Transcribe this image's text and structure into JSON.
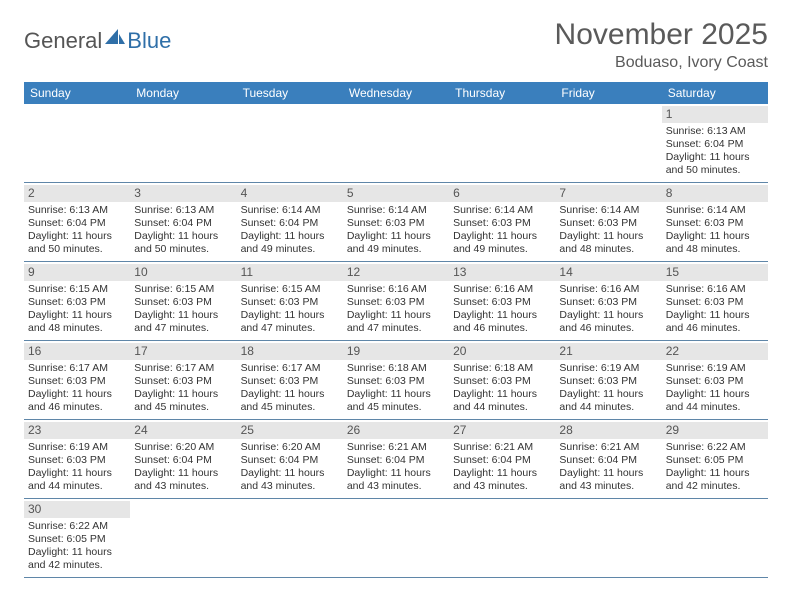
{
  "header": {
    "logo_text_a": "General",
    "logo_text_b": "Blue",
    "month_title": "November 2025",
    "location": "Boduaso, Ivory Coast",
    "title_color": "#5a5a5a",
    "logo_blue": "#2f6fa8",
    "logo_gray": "#555555"
  },
  "colors": {
    "header_bg": "#3a7fbd",
    "header_fg": "#ffffff",
    "daybar_bg": "#e6e6e6",
    "week_border": "#5f86a8",
    "text": "#333333"
  },
  "days_of_week": [
    "Sunday",
    "Monday",
    "Tuesday",
    "Wednesday",
    "Thursday",
    "Friday",
    "Saturday"
  ],
  "weeks": [
    [
      null,
      null,
      null,
      null,
      null,
      null,
      {
        "n": "1",
        "sunrise": "Sunrise: 6:13 AM",
        "sunset": "Sunset: 6:04 PM",
        "daylight": "Daylight: 11 hours and 50 minutes."
      }
    ],
    [
      {
        "n": "2",
        "sunrise": "Sunrise: 6:13 AM",
        "sunset": "Sunset: 6:04 PM",
        "daylight": "Daylight: 11 hours and 50 minutes."
      },
      {
        "n": "3",
        "sunrise": "Sunrise: 6:13 AM",
        "sunset": "Sunset: 6:04 PM",
        "daylight": "Daylight: 11 hours and 50 minutes."
      },
      {
        "n": "4",
        "sunrise": "Sunrise: 6:14 AM",
        "sunset": "Sunset: 6:04 PM",
        "daylight": "Daylight: 11 hours and 49 minutes."
      },
      {
        "n": "5",
        "sunrise": "Sunrise: 6:14 AM",
        "sunset": "Sunset: 6:03 PM",
        "daylight": "Daylight: 11 hours and 49 minutes."
      },
      {
        "n": "6",
        "sunrise": "Sunrise: 6:14 AM",
        "sunset": "Sunset: 6:03 PM",
        "daylight": "Daylight: 11 hours and 49 minutes."
      },
      {
        "n": "7",
        "sunrise": "Sunrise: 6:14 AM",
        "sunset": "Sunset: 6:03 PM",
        "daylight": "Daylight: 11 hours and 48 minutes."
      },
      {
        "n": "8",
        "sunrise": "Sunrise: 6:14 AM",
        "sunset": "Sunset: 6:03 PM",
        "daylight": "Daylight: 11 hours and 48 minutes."
      }
    ],
    [
      {
        "n": "9",
        "sunrise": "Sunrise: 6:15 AM",
        "sunset": "Sunset: 6:03 PM",
        "daylight": "Daylight: 11 hours and 48 minutes."
      },
      {
        "n": "10",
        "sunrise": "Sunrise: 6:15 AM",
        "sunset": "Sunset: 6:03 PM",
        "daylight": "Daylight: 11 hours and 47 minutes."
      },
      {
        "n": "11",
        "sunrise": "Sunrise: 6:15 AM",
        "sunset": "Sunset: 6:03 PM",
        "daylight": "Daylight: 11 hours and 47 minutes."
      },
      {
        "n": "12",
        "sunrise": "Sunrise: 6:16 AM",
        "sunset": "Sunset: 6:03 PM",
        "daylight": "Daylight: 11 hours and 47 minutes."
      },
      {
        "n": "13",
        "sunrise": "Sunrise: 6:16 AM",
        "sunset": "Sunset: 6:03 PM",
        "daylight": "Daylight: 11 hours and 46 minutes."
      },
      {
        "n": "14",
        "sunrise": "Sunrise: 6:16 AM",
        "sunset": "Sunset: 6:03 PM",
        "daylight": "Daylight: 11 hours and 46 minutes."
      },
      {
        "n": "15",
        "sunrise": "Sunrise: 6:16 AM",
        "sunset": "Sunset: 6:03 PM",
        "daylight": "Daylight: 11 hours and 46 minutes."
      }
    ],
    [
      {
        "n": "16",
        "sunrise": "Sunrise: 6:17 AM",
        "sunset": "Sunset: 6:03 PM",
        "daylight": "Daylight: 11 hours and 46 minutes."
      },
      {
        "n": "17",
        "sunrise": "Sunrise: 6:17 AM",
        "sunset": "Sunset: 6:03 PM",
        "daylight": "Daylight: 11 hours and 45 minutes."
      },
      {
        "n": "18",
        "sunrise": "Sunrise: 6:17 AM",
        "sunset": "Sunset: 6:03 PM",
        "daylight": "Daylight: 11 hours and 45 minutes."
      },
      {
        "n": "19",
        "sunrise": "Sunrise: 6:18 AM",
        "sunset": "Sunset: 6:03 PM",
        "daylight": "Daylight: 11 hours and 45 minutes."
      },
      {
        "n": "20",
        "sunrise": "Sunrise: 6:18 AM",
        "sunset": "Sunset: 6:03 PM",
        "daylight": "Daylight: 11 hours and 44 minutes."
      },
      {
        "n": "21",
        "sunrise": "Sunrise: 6:19 AM",
        "sunset": "Sunset: 6:03 PM",
        "daylight": "Daylight: 11 hours and 44 minutes."
      },
      {
        "n": "22",
        "sunrise": "Sunrise: 6:19 AM",
        "sunset": "Sunset: 6:03 PM",
        "daylight": "Daylight: 11 hours and 44 minutes."
      }
    ],
    [
      {
        "n": "23",
        "sunrise": "Sunrise: 6:19 AM",
        "sunset": "Sunset: 6:03 PM",
        "daylight": "Daylight: 11 hours and 44 minutes."
      },
      {
        "n": "24",
        "sunrise": "Sunrise: 6:20 AM",
        "sunset": "Sunset: 6:04 PM",
        "daylight": "Daylight: 11 hours and 43 minutes."
      },
      {
        "n": "25",
        "sunrise": "Sunrise: 6:20 AM",
        "sunset": "Sunset: 6:04 PM",
        "daylight": "Daylight: 11 hours and 43 minutes."
      },
      {
        "n": "26",
        "sunrise": "Sunrise: 6:21 AM",
        "sunset": "Sunset: 6:04 PM",
        "daylight": "Daylight: 11 hours and 43 minutes."
      },
      {
        "n": "27",
        "sunrise": "Sunrise: 6:21 AM",
        "sunset": "Sunset: 6:04 PM",
        "daylight": "Daylight: 11 hours and 43 minutes."
      },
      {
        "n": "28",
        "sunrise": "Sunrise: 6:21 AM",
        "sunset": "Sunset: 6:04 PM",
        "daylight": "Daylight: 11 hours and 43 minutes."
      },
      {
        "n": "29",
        "sunrise": "Sunrise: 6:22 AM",
        "sunset": "Sunset: 6:05 PM",
        "daylight": "Daylight: 11 hours and 42 minutes."
      }
    ],
    [
      {
        "n": "30",
        "sunrise": "Sunrise: 6:22 AM",
        "sunset": "Sunset: 6:05 PM",
        "daylight": "Daylight: 11 hours and 42 minutes."
      },
      null,
      null,
      null,
      null,
      null,
      null
    ]
  ]
}
